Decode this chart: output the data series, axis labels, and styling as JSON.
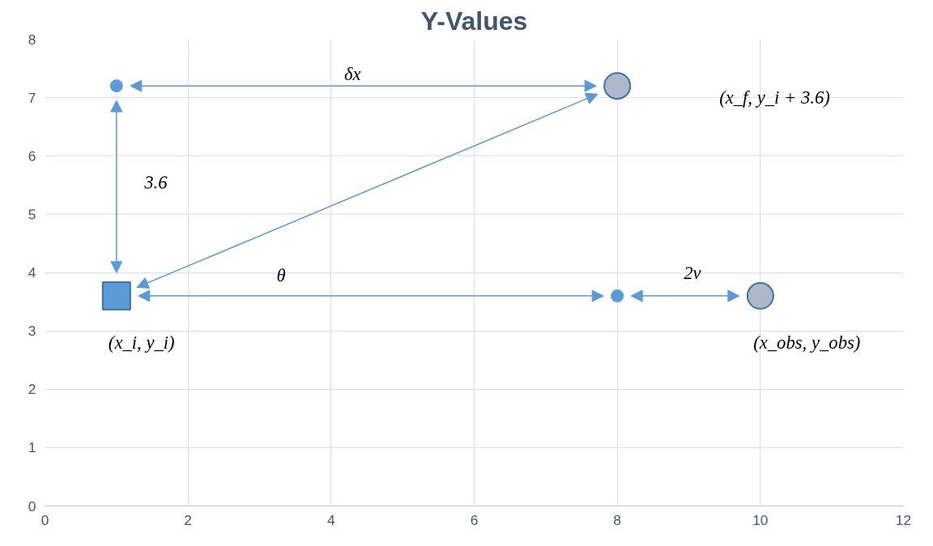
{
  "chart_data": {
    "type": "scatter",
    "title": "Y-Values",
    "series": [
      {
        "marker": "circle",
        "color": "#5b9bd5",
        "x": [
          1,
          8
        ],
        "values": [
          7.2,
          3.6
        ]
      },
      {
        "marker": "square",
        "color": "#5b9bd5",
        "x": [
          1
        ],
        "values": [
          3.6
        ]
      },
      {
        "marker": "circle",
        "color": "#adb9ca",
        "x": [
          8,
          10
        ],
        "values": [
          7.2,
          3.6
        ]
      }
    ],
    "xlim": [
      0,
      12
    ],
    "xticks": [
      0,
      2,
      4,
      6,
      8,
      10,
      12
    ],
    "ylim": [
      0,
      8
    ],
    "yticks": [
      0,
      1,
      2,
      3,
      4,
      5,
      6,
      7,
      8
    ],
    "grid": true,
    "annotations": [
      "δx",
      "(x_f, y_i + 3.6)",
      "3.6",
      "θ",
      "2v",
      "(x_i, y_i)",
      "(x_obs, y_obs)"
    ]
  }
}
